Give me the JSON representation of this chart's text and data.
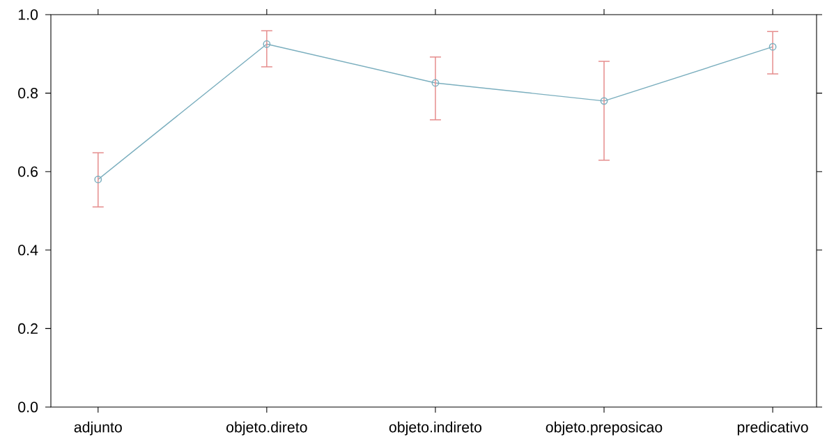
{
  "chart_data": {
    "type": "line",
    "categories": [
      "adjunto",
      "objeto.direto",
      "objeto.indireto",
      "objeto.preposicao",
      "predicativo"
    ],
    "series": [
      {
        "color": "#7aaebe",
        "values": [
          0.58,
          0.925,
          0.826,
          0.78,
          0.918
        ],
        "errors": [
          [
            0.51,
            0.648
          ],
          [
            0.867,
            0.959
          ],
          [
            0.732,
            0.892
          ],
          [
            0.629,
            0.881
          ],
          [
            0.849,
            0.957
          ]
        ]
      }
    ],
    "ylim": [
      0,
      1
    ],
    "yticks": [
      {
        "value": 0,
        "label": "0.0"
      },
      {
        "value": 0.2,
        "label": "0.2"
      },
      {
        "value": 0.4,
        "label": "0.4"
      },
      {
        "value": 0.6,
        "label": "0.6"
      },
      {
        "value": 0.8,
        "label": "0.8"
      },
      {
        "value": 1,
        "label": "1.0"
      }
    ],
    "marker": "circle",
    "line_style": "solid"
  }
}
